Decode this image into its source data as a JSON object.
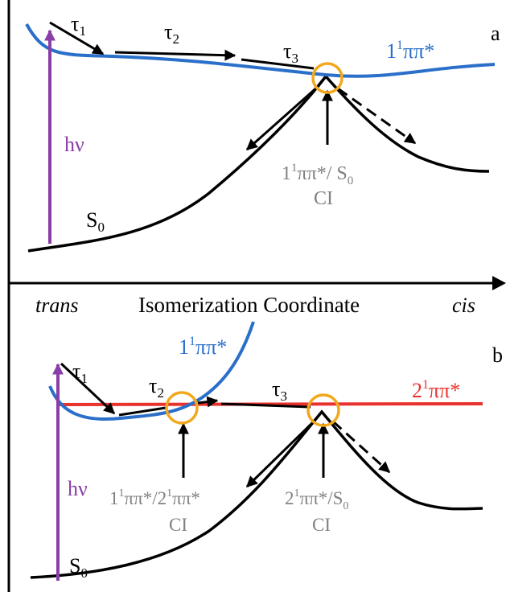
{
  "panel_a": {
    "panel_letter": "a",
    "tau1": "τ",
    "tau1_sub": "1",
    "tau2": "τ",
    "tau2_sub": "2",
    "tau3": "τ",
    "tau3_sub": "3",
    "excited_state_pre": "1",
    "excited_state_sup": "1",
    "excited_state_post": "ππ*",
    "hv": "hν",
    "ground_state": "S",
    "ground_state_sub": "0",
    "ci_pre": "1",
    "ci_sup": "1",
    "ci_mid": "ππ*/ S",
    "ci_sub": "0",
    "ci_word": "CI"
  },
  "axis": {
    "left": "trans",
    "title": "Isomerization Coordinate",
    "right": "cis"
  },
  "panel_b": {
    "panel_letter": "b",
    "tau1": "τ",
    "tau1_sub": "1",
    "tau2": "τ",
    "tau2_sub": "2",
    "tau3": "τ",
    "tau3_sub": "3",
    "s1_pre": "1",
    "s1_sup": "1",
    "s1_post": "ππ*",
    "s2_pre": "2",
    "s2_sup": "1",
    "s2_post": "ππ*",
    "hv": "hν",
    "ground_state": "S",
    "ground_state_sub": "0",
    "ci1_a": "1",
    "ci1_a_sup": "1",
    "ci1_b": "ππ*/2",
    "ci1_b_sup": "1",
    "ci1_c": "ππ*",
    "ci1_word": "CI",
    "ci2_a": "2",
    "ci2_a_sup": "1",
    "ci2_b": "ππ*/S",
    "ci2_sub": "0",
    "ci2_word": "CI"
  },
  "colors": {
    "s1_curve": "#2a6fc9",
    "s2_curve": "#e8322d",
    "excitation_arrow": "#8a3fa8",
    "ci_circle": "#f2a81d",
    "ci_label": "#808080"
  }
}
